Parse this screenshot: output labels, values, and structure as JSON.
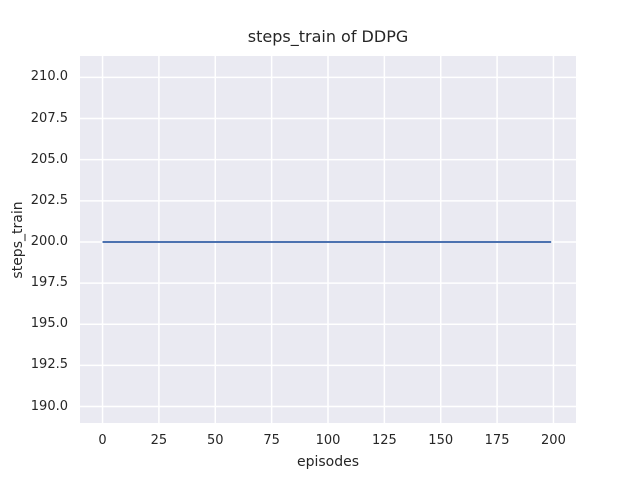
{
  "chart_data": {
    "type": "line",
    "title": "steps_train of DDPG",
    "xlabel": "episodes",
    "ylabel": "steps_train",
    "xlim": [
      -10,
      210
    ],
    "ylim": [
      189.0,
      211.3
    ],
    "x_ticks": [
      0,
      25,
      50,
      75,
      100,
      125,
      150,
      175,
      200
    ],
    "x_tick_labels": [
      "0",
      "25",
      "50",
      "75",
      "100",
      "125",
      "150",
      "175",
      "200"
    ],
    "y_ticks": [
      190.0,
      192.5,
      195.0,
      197.5,
      200.0,
      202.5,
      205.0,
      207.5,
      210.0
    ],
    "y_tick_labels": [
      "190.0",
      "192.5",
      "195.0",
      "197.5",
      "200.0",
      "202.5",
      "205.0",
      "207.5",
      "210.0"
    ],
    "grid": true,
    "legend_position": "none",
    "series": [
      {
        "name": "steps_train",
        "color": "#4c72b0",
        "x": [
          0,
          199
        ],
        "y": [
          200,
          200
        ],
        "constant_value": 200
      }
    ],
    "styles": {
      "figure_background": "#ffffff",
      "axes_background": "#eaeaf2",
      "grid_color": "#ffffff",
      "text_color": "#262626",
      "line_width": 2,
      "grid_width": 1.5
    }
  }
}
